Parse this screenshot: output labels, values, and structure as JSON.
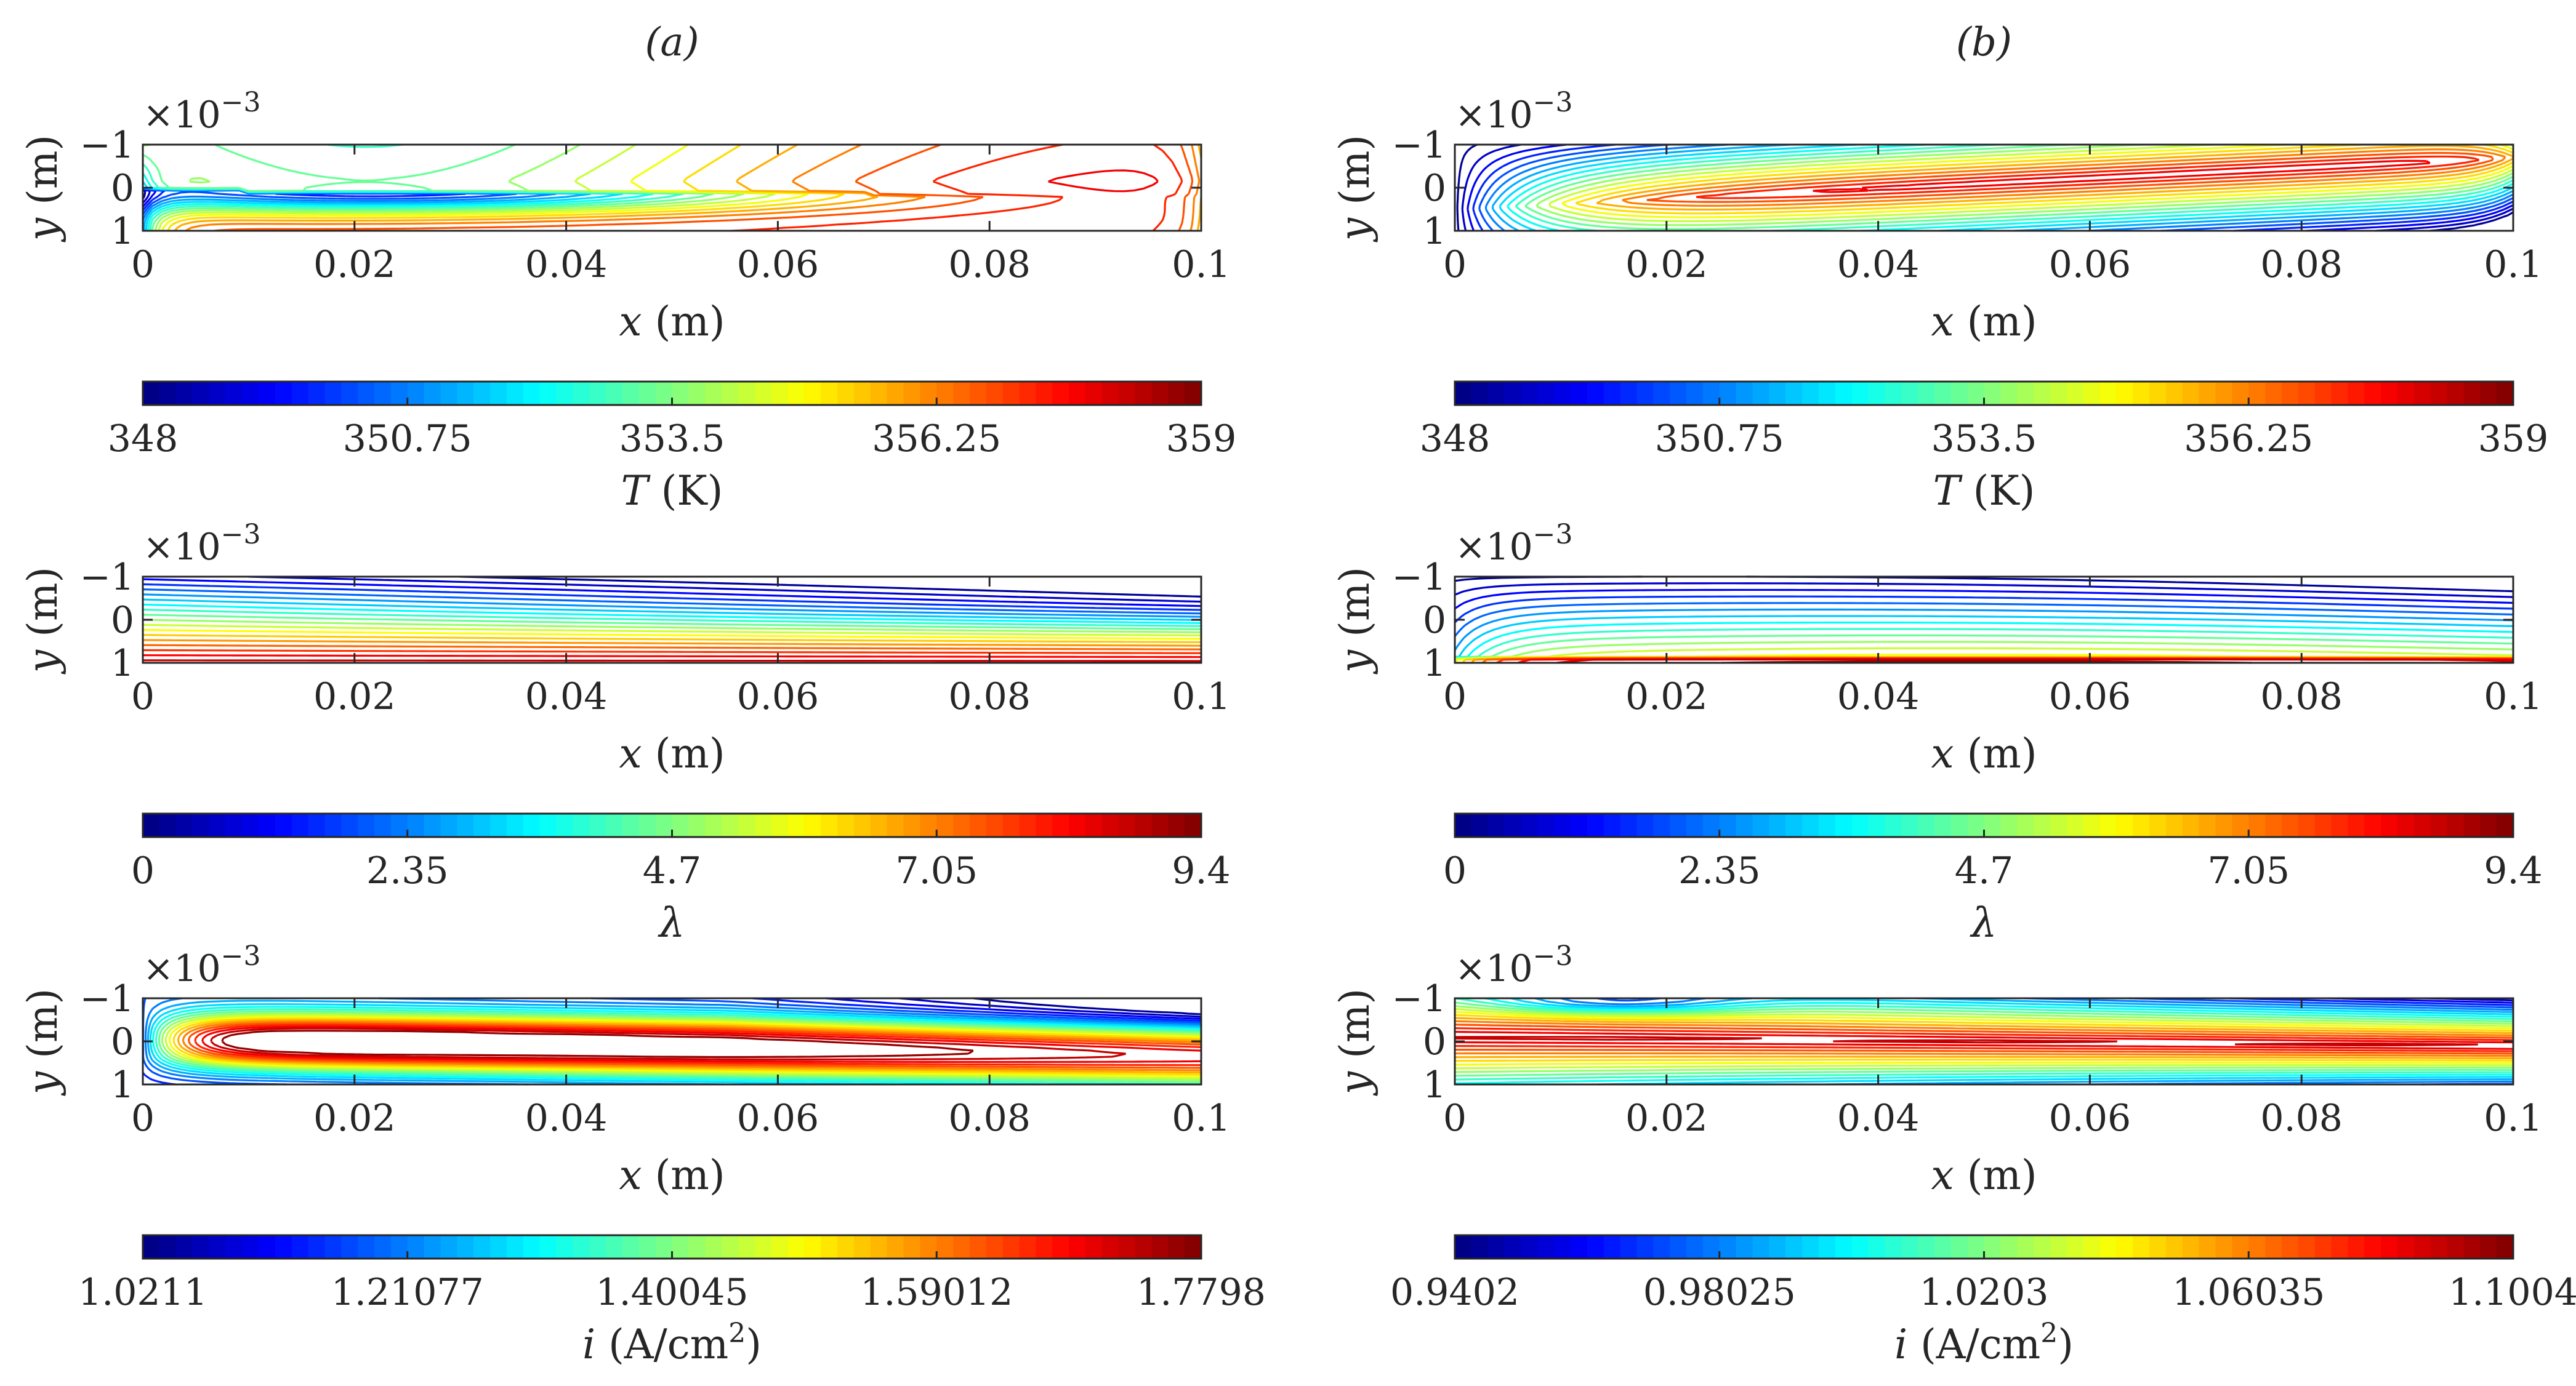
{
  "chart_data": [
    {
      "type": "contour",
      "id": "a-T",
      "column": "a",
      "row": 0,
      "title": "(a)",
      "x_label_var": "x",
      "x_label_unit": "(m)",
      "y_label_var": "y",
      "y_label_unit": "(m)",
      "y_exponent_base": "×10",
      "y_exponent_power": "−3",
      "x_ticks": [
        "0",
        "0.02",
        "0.04",
        "0.06",
        "0.08",
        "0.1"
      ],
      "y_ticks": [
        "−1",
        "0",
        "1"
      ],
      "xlim": [
        0,
        0.1
      ],
      "ylim": [
        -0.001,
        0.001
      ],
      "colorbar_ticks": [
        "348",
        "350.75",
        "353.5",
        "356.25",
        "359"
      ],
      "colorbar_range": [
        348,
        359
      ],
      "colorbar_label_var": "T",
      "colorbar_label_unit": "(K)",
      "colorbar_label_sup": "",
      "pattern": "Ta",
      "levels": 22
    },
    {
      "type": "contour",
      "id": "b-T",
      "column": "b",
      "row": 0,
      "title": "(b)",
      "x_label_var": "x",
      "x_label_unit": "(m)",
      "y_label_var": "y",
      "y_label_unit": "(m)",
      "y_exponent_base": "×10",
      "y_exponent_power": "−3",
      "x_ticks": [
        "0",
        "0.02",
        "0.04",
        "0.06",
        "0.08",
        "0.1"
      ],
      "y_ticks": [
        "−1",
        "0",
        "1"
      ],
      "xlim": [
        0,
        0.1
      ],
      "ylim": [
        -0.001,
        0.001
      ],
      "colorbar_ticks": [
        "348",
        "350.75",
        "353.5",
        "356.25",
        "359"
      ],
      "colorbar_range": [
        348,
        359
      ],
      "colorbar_label_var": "T",
      "colorbar_label_unit": "(K)",
      "colorbar_label_sup": "",
      "pattern": "Tb",
      "levels": 22
    },
    {
      "type": "contour",
      "id": "a-lambda",
      "column": "a",
      "row": 1,
      "title": "",
      "x_label_var": "x",
      "x_label_unit": "(m)",
      "y_label_var": "y",
      "y_label_unit": "(m)",
      "y_exponent_base": "×10",
      "y_exponent_power": "−3",
      "x_ticks": [
        "0",
        "0.02",
        "0.04",
        "0.06",
        "0.08",
        "0.1"
      ],
      "y_ticks": [
        "−1",
        "0",
        "1"
      ],
      "xlim": [
        0,
        0.1
      ],
      "ylim": [
        -0.001,
        0.001
      ],
      "colorbar_ticks": [
        "0",
        "2.35",
        "4.7",
        "7.05",
        "9.4"
      ],
      "colorbar_range": [
        0,
        9.4
      ],
      "colorbar_label_var": "λ",
      "colorbar_label_unit": "",
      "colorbar_label_sup": "",
      "pattern": "La",
      "levels": 20
    },
    {
      "type": "contour",
      "id": "b-lambda",
      "column": "b",
      "row": 1,
      "title": "",
      "x_label_var": "x",
      "x_label_unit": "(m)",
      "y_label_var": "y",
      "y_label_unit": "(m)",
      "y_exponent_base": "×10",
      "y_exponent_power": "−3",
      "x_ticks": [
        "0",
        "0.02",
        "0.04",
        "0.06",
        "0.08",
        "0.1"
      ],
      "y_ticks": [
        "−1",
        "0",
        "1"
      ],
      "xlim": [
        0,
        0.1
      ],
      "ylim": [
        -0.001,
        0.001
      ],
      "colorbar_ticks": [
        "0",
        "2.35",
        "4.7",
        "7.05",
        "9.4"
      ],
      "colorbar_range": [
        0,
        9.4
      ],
      "colorbar_label_var": "λ",
      "colorbar_label_unit": "",
      "colorbar_label_sup": "",
      "pattern": "Lb",
      "levels": 20
    },
    {
      "type": "contour",
      "id": "a-i",
      "column": "a",
      "row": 2,
      "title": "",
      "x_label_var": "x",
      "x_label_unit": "(m)",
      "y_label_var": "y",
      "y_label_unit": "(m)",
      "y_exponent_base": "×10",
      "y_exponent_power": "−3",
      "x_ticks": [
        "0",
        "0.02",
        "0.04",
        "0.06",
        "0.08",
        "0.1"
      ],
      "y_ticks": [
        "−1",
        "0",
        "1"
      ],
      "xlim": [
        0,
        0.1
      ],
      "ylim": [
        -0.001,
        0.001
      ],
      "colorbar_ticks": [
        "1.0211",
        "1.21077",
        "1.40045",
        "1.59012",
        "1.7798"
      ],
      "colorbar_range": [
        1.0211,
        1.7798
      ],
      "colorbar_label_var": "i",
      "colorbar_label_unit": "(A/cm",
      "colorbar_label_sup": "2",
      "pattern": "Ia",
      "levels": 22
    },
    {
      "type": "contour",
      "id": "b-i",
      "column": "b",
      "row": 2,
      "title": "",
      "x_label_var": "x",
      "x_label_unit": "(m)",
      "y_label_var": "y",
      "y_label_unit": "(m)",
      "y_exponent_base": "×10",
      "y_exponent_power": "−3",
      "x_ticks": [
        "0",
        "0.02",
        "0.04",
        "0.06",
        "0.08",
        "0.1"
      ],
      "y_ticks": [
        "−1",
        "0",
        "1"
      ],
      "xlim": [
        0,
        0.1
      ],
      "ylim": [
        -0.001,
        0.001
      ],
      "colorbar_ticks": [
        "0.9402",
        "0.98025",
        "1.0203",
        "1.06035",
        "1.1004"
      ],
      "colorbar_range": [
        0.9402,
        1.1004
      ],
      "colorbar_label_var": "i",
      "colorbar_label_unit": "(A/cm",
      "colorbar_label_sup": "2",
      "pattern": "Ib",
      "levels": 22
    }
  ]
}
